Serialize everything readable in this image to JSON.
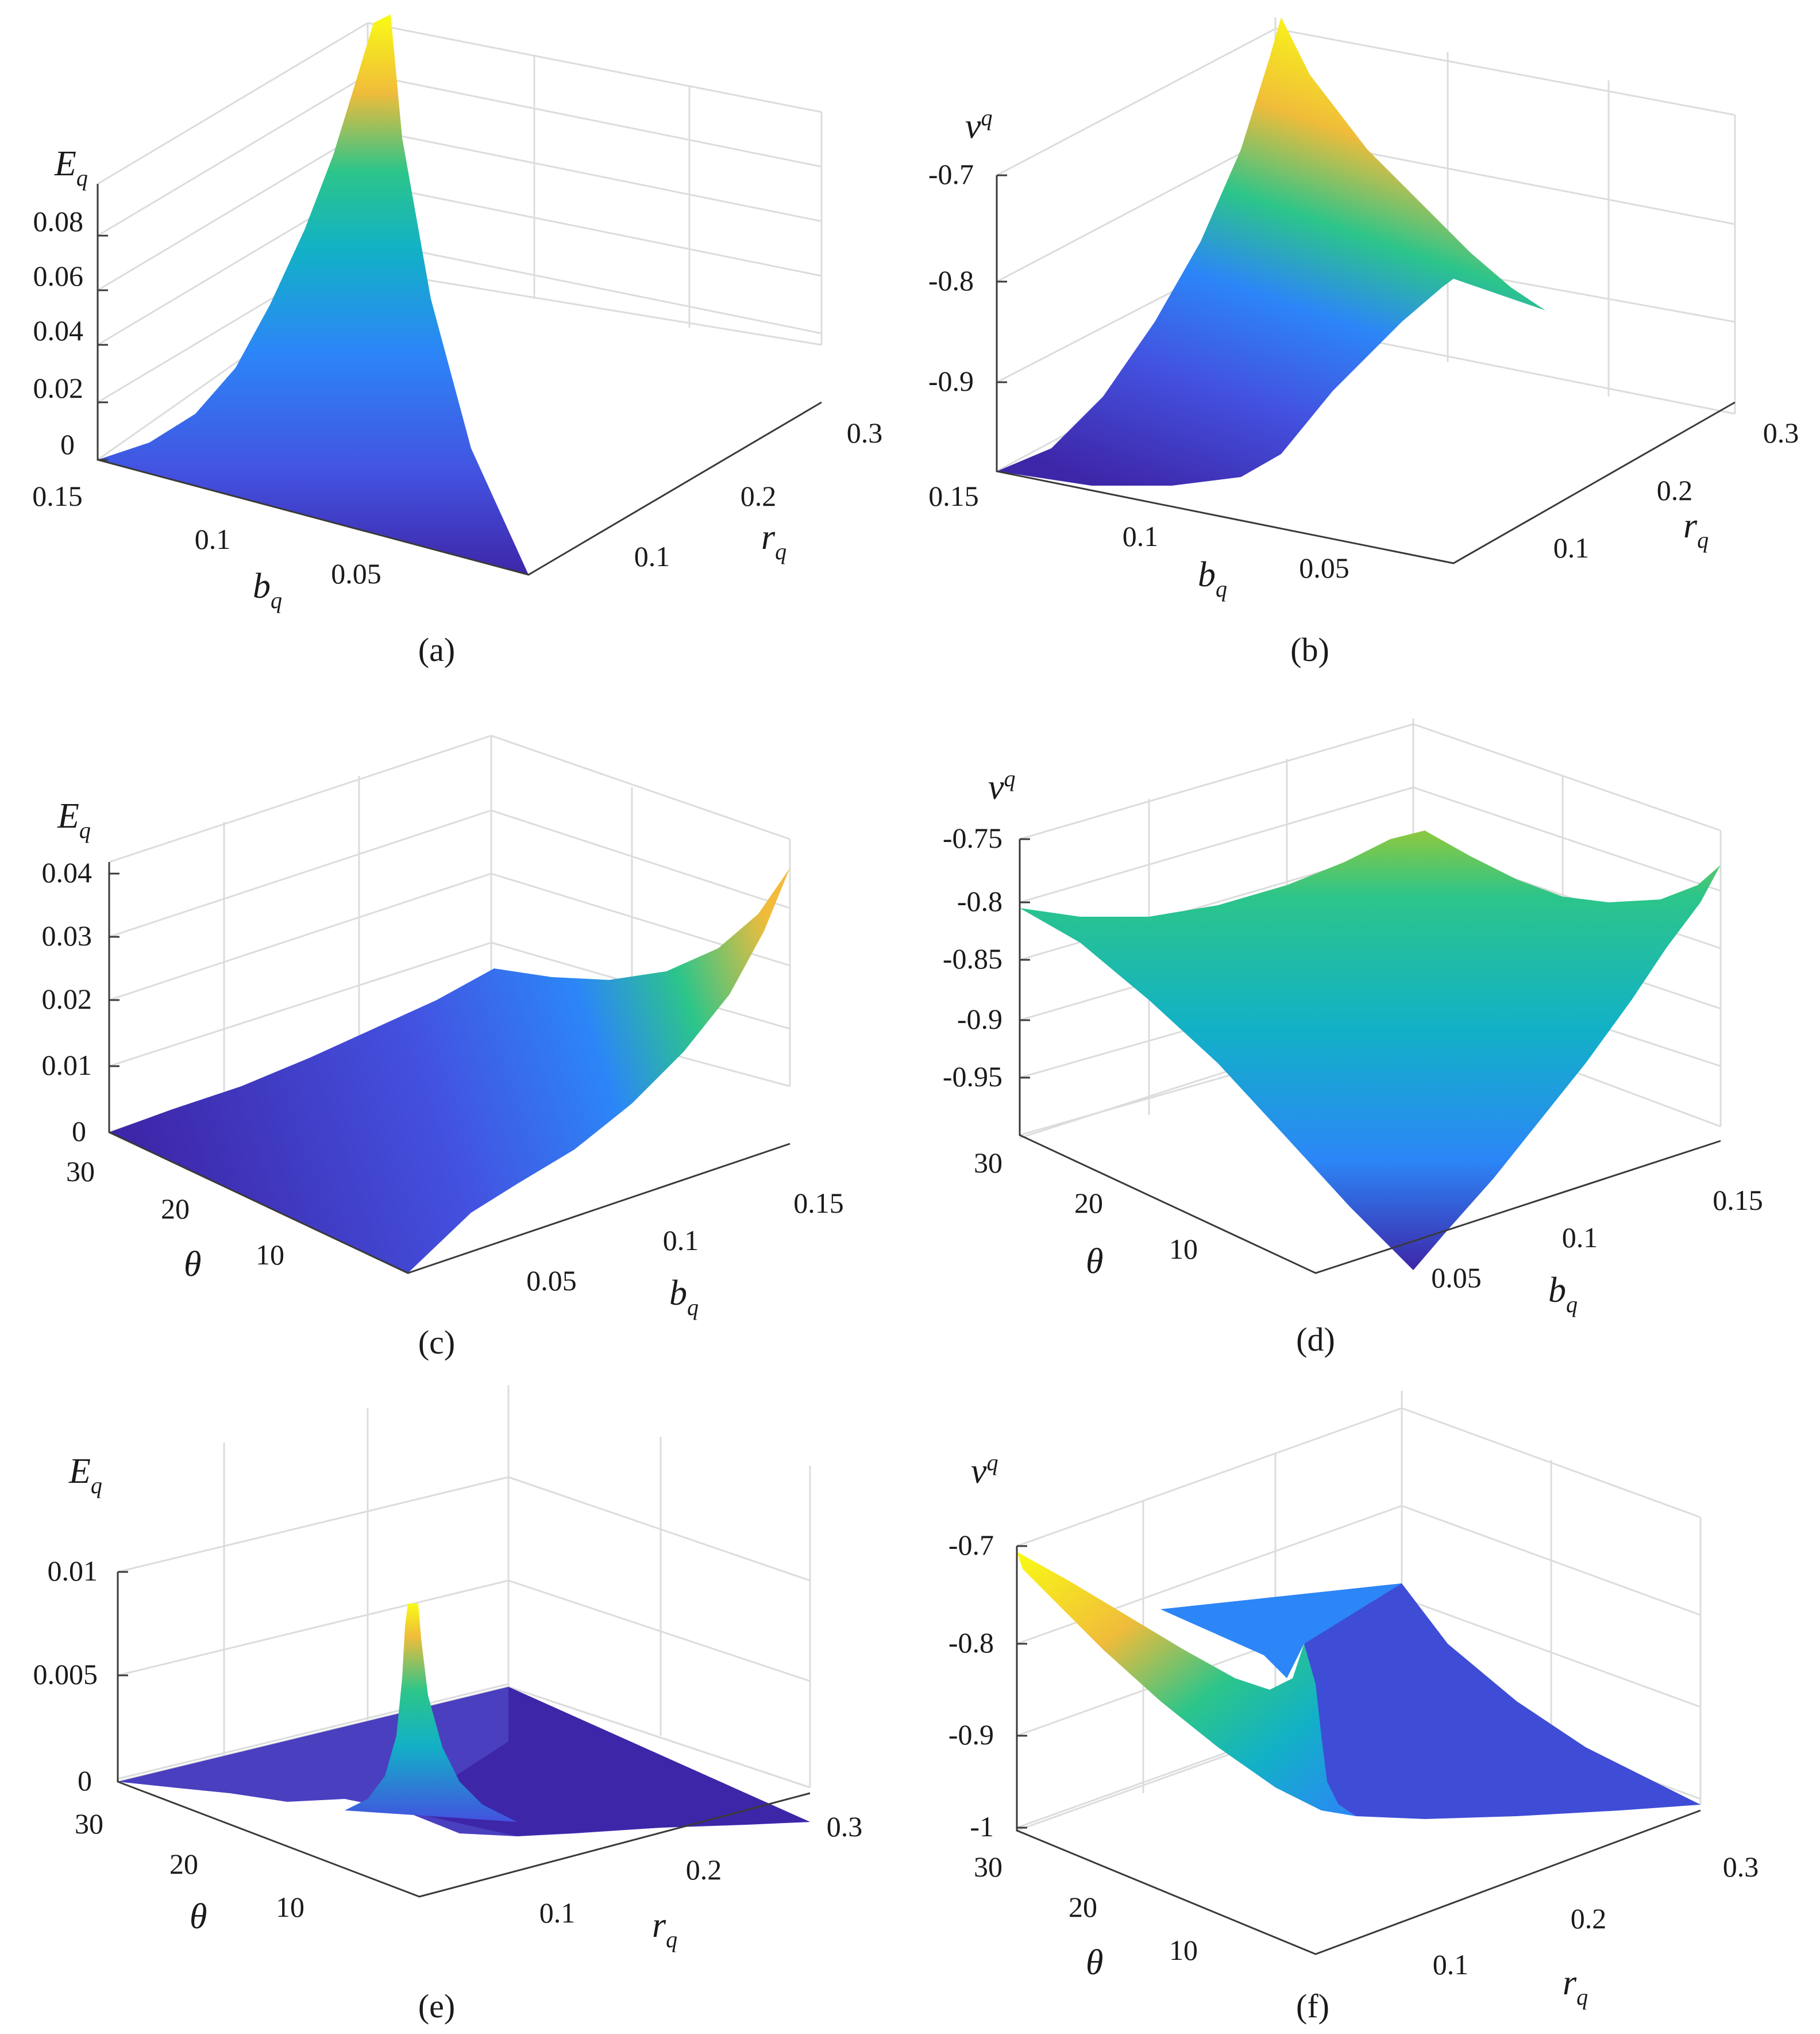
{
  "figure": {
    "panels": [
      {
        "id": "a",
        "caption": "(a)"
      },
      {
        "id": "b",
        "caption": "(b)"
      },
      {
        "id": "c",
        "caption": "(c)"
      },
      {
        "id": "d",
        "caption": "(d)"
      },
      {
        "id": "e",
        "caption": "(e)"
      },
      {
        "id": "f",
        "caption": "(f)"
      }
    ]
  },
  "colormap": [
    "#3e26a8",
    "#4352e0",
    "#2c86f7",
    "#12b1c6",
    "#2cc58a",
    "#8ec83e",
    "#f0bc3a",
    "#f9fb15"
  ],
  "chart_data": [
    {
      "type": "surface",
      "caption": "(a)",
      "title": "",
      "xlabel": "b",
      "xlabel_sub": "q",
      "ylabel": "r",
      "ylabel_sub": "q",
      "zlabel": "E",
      "zlabel_sub": "q",
      "xlim": [
        0.15,
        0
      ],
      "ylim": [
        0,
        0.3
      ],
      "zlim": [
        0,
        0.1
      ],
      "x_ticks": [
        "0.15",
        "0.1",
        "0.05"
      ],
      "y_ticks": [
        "0.1",
        "0.2",
        "0.3"
      ],
      "z_ticks": [
        "0",
        "0.02",
        "0.04",
        "0.06",
        "0.08"
      ],
      "surface_peak": {
        "x": 0.15,
        "y": 0.3,
        "z": 0.1
      },
      "grid": true
    },
    {
      "type": "surface",
      "caption": "(b)",
      "title": "",
      "xlabel": "b",
      "xlabel_sub": "q",
      "ylabel": "r",
      "ylabel_sub": "q",
      "zlabel": "ν",
      "zlabel_sub": "q",
      "xlim": [
        0.15,
        0
      ],
      "ylim": [
        0,
        0.3
      ],
      "zlim": [
        -1,
        -0.6
      ],
      "x_ticks": [
        "0.15",
        "0.1",
        "0.05"
      ],
      "y_ticks": [
        "0.1",
        "0.2",
        "0.3"
      ],
      "z_ticks": [
        "-0.7",
        "-0.8",
        "-0.9"
      ],
      "surface_peak": {
        "x": 0.15,
        "y": 0.3,
        "z": -0.6
      },
      "grid": true
    },
    {
      "type": "surface",
      "caption": "(c)",
      "title": "",
      "xlabel": "θ",
      "ylabel": "b",
      "ylabel_sub": "q",
      "zlabel": "E",
      "zlabel_sub": "q",
      "xlim": [
        30,
        0
      ],
      "ylim": [
        0,
        0.15
      ],
      "zlim": [
        0,
        0.05
      ],
      "x_ticks": [
        "30",
        "20",
        "10"
      ],
      "y_ticks": [
        "0.05",
        "0.1",
        "0.15"
      ],
      "z_ticks": [
        "0",
        "0.01",
        "0.02",
        "0.03",
        "0.04"
      ],
      "surface_peak": {
        "x": 0,
        "y": 0.15,
        "z": 0.042
      },
      "grid": true
    },
    {
      "type": "surface",
      "caption": "(d)",
      "title": "",
      "xlabel": "θ",
      "ylabel": "b",
      "ylabel_sub": "q",
      "zlabel": "ν",
      "zlabel_sub": "q",
      "xlim": [
        30,
        0
      ],
      "ylim": [
        0,
        0.15
      ],
      "zlim": [
        -1,
        -0.75
      ],
      "x_ticks": [
        "30",
        "20",
        "10"
      ],
      "y_ticks": [
        "0.05",
        "0.1",
        "0.15"
      ],
      "z_ticks": [
        "-0.75",
        "-0.8",
        "-0.85",
        "-0.9",
        "-0.95"
      ],
      "surface_peak": {
        "x": 0,
        "y": 0.15,
        "z": -0.76
      },
      "grid": true
    },
    {
      "type": "surface",
      "caption": "(e)",
      "title": "",
      "xlabel": "θ",
      "ylabel": "r",
      "ylabel_sub": "q",
      "zlabel": "E",
      "zlabel_sub": "q",
      "xlim": [
        30,
        0
      ],
      "ylim": [
        0,
        0.3
      ],
      "zlim": [
        0,
        0.015
      ],
      "x_ticks": [
        "30",
        "20",
        "10"
      ],
      "y_ticks": [
        "0.1",
        "0.2",
        "0.3"
      ],
      "z_ticks": [
        "0",
        "0.005",
        "0.01"
      ],
      "surface_peak": {
        "x": 15,
        "y": 0.15,
        "z": 0.0075
      },
      "grid": true
    },
    {
      "type": "surface",
      "caption": "(f)",
      "title": "",
      "xlabel": "θ",
      "ylabel": "r",
      "ylabel_sub": "q",
      "zlabel": "ν",
      "zlabel_sub": "q",
      "xlim": [
        30,
        0
      ],
      "ylim": [
        0,
        0.3
      ],
      "zlim": [
        -1,
        -0.65
      ],
      "x_ticks": [
        "30",
        "20",
        "10"
      ],
      "y_ticks": [
        "0.1",
        "0.2",
        "0.3"
      ],
      "z_ticks": [
        "-0.7",
        "-0.8",
        "-0.9",
        "-1"
      ],
      "surface_peak": {
        "x": 30,
        "y": 0,
        "z": -0.68
      },
      "grid": true
    }
  ]
}
